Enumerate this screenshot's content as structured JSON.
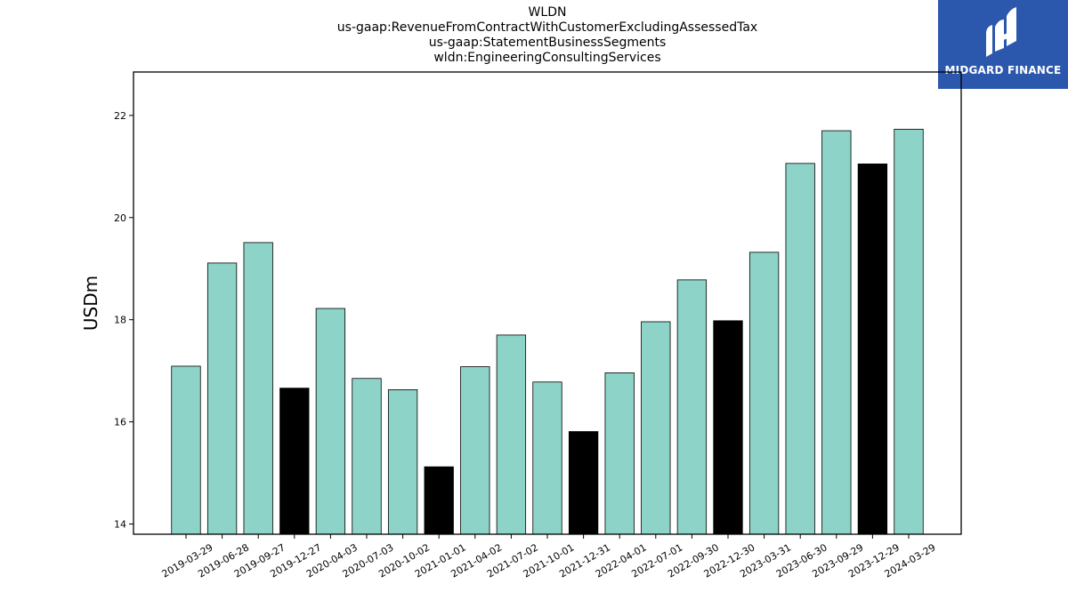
{
  "title_lines": [
    "WLDN",
    "us-gaap:RevenueFromContractWithCustomerExcludingAssessedTax",
    "us-gaap:StatementBusinessSegments",
    "wldn:EngineeringConsultingServices"
  ],
  "logo": {
    "text": "MIDGARD FINANCE",
    "background": "#2b57ad"
  },
  "colors": {
    "regular": "#8dd3c7",
    "highlight": "#000000",
    "edge": "#000000"
  },
  "chart_data": {
    "type": "bar",
    "title": "WLDN\nus-gaap:RevenueFromContractWithCustomerExcludingAssessedTax\nus-gaap:StatementBusinessSegments\nwldn:EngineeringConsultingServices",
    "xlabel": "",
    "ylabel": "USDm",
    "ylim": [
      13.8,
      22.85
    ],
    "yticks": [
      14,
      16,
      18,
      20,
      22
    ],
    "grid": false,
    "categories": [
      "2019-03-29",
      "2019-06-28",
      "2019-09-27",
      "2019-12-27",
      "2020-04-03",
      "2020-07-03",
      "2020-10-02",
      "2021-01-01",
      "2021-04-02",
      "2021-07-02",
      "2021-10-01",
      "2021-12-31",
      "2022-04-01",
      "2022-07-01",
      "2022-09-30",
      "2022-12-30",
      "2023-03-31",
      "2023-06-30",
      "2023-09-29",
      "2023-12-29",
      "2024-03-29"
    ],
    "values": [
      17.09,
      19.11,
      19.51,
      16.66,
      18.22,
      16.85,
      16.63,
      15.12,
      17.08,
      17.7,
      16.78,
      15.81,
      16.96,
      17.96,
      18.78,
      17.98,
      19.32,
      21.06,
      21.7,
      21.05,
      21.73
    ],
    "highlighted": [
      false,
      false,
      false,
      true,
      false,
      false,
      false,
      true,
      false,
      false,
      false,
      true,
      false,
      false,
      false,
      true,
      false,
      false,
      false,
      true,
      false
    ]
  }
}
